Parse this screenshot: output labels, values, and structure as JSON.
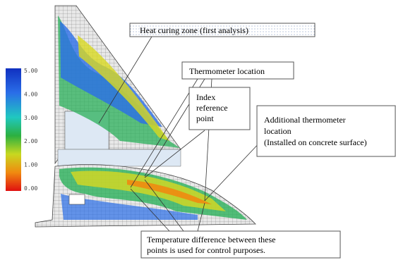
{
  "colorbar": {
    "labels": [
      "5.00",
      "4.00",
      "3.00",
      "2.00",
      "1.00",
      "0.00"
    ]
  },
  "annotations": {
    "heat_curing": "Heat curing zone (first analysis)",
    "thermometer": "Thermometer location",
    "index_point": [
      "Index",
      "reference",
      "point"
    ],
    "additional": [
      "Additional thermometer",
      "location",
      "(Installed on concrete surface)"
    ],
    "temperature": [
      "Temperature difference between these",
      "points is used for control purposes."
    ]
  }
}
